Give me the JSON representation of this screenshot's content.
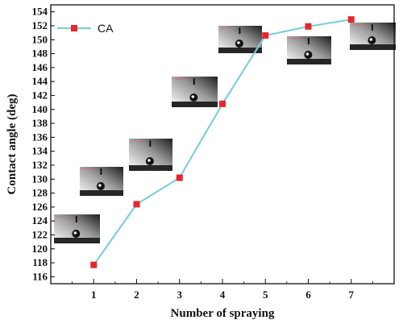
{
  "chart_data": {
    "type": "line",
    "xlabel": "Number of spraying",
    "ylabel": "Contact angle (deg)",
    "x": [
      1,
      2,
      3,
      4,
      5,
      6,
      7
    ],
    "xlim": [
      0,
      8
    ],
    "ylim": [
      115,
      155
    ],
    "x_ticks": [
      "1",
      "2",
      "3",
      "4",
      "5",
      "6",
      "7"
    ],
    "y_ticks": [
      "116",
      "118",
      "120",
      "122",
      "124",
      "126",
      "128",
      "130",
      "132",
      "134",
      "136",
      "138",
      "140",
      "142",
      "144",
      "146",
      "148",
      "150",
      "152",
      "154"
    ],
    "series": [
      {
        "name": "CA",
        "values": [
          117.7,
          126.4,
          130.2,
          140.8,
          150.6,
          151.9,
          152.9
        ],
        "line_color": "#7ecfdb",
        "marker_color": "#e8262b"
      }
    ],
    "legend_position": "top-left",
    "grid": false,
    "insets": "droplet contact-angle photographs above each point"
  }
}
